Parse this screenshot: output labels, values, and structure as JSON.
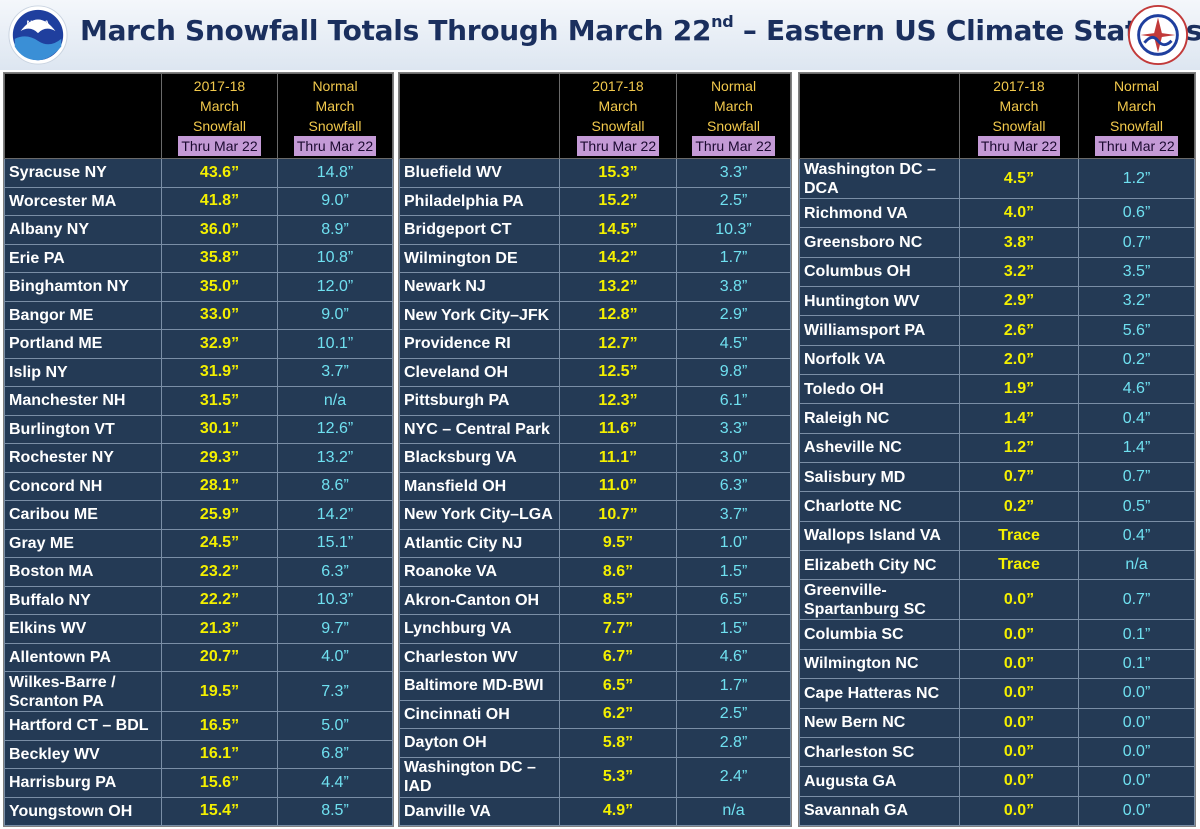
{
  "title": {
    "main": "March Snowfall Totals Through March 22",
    "sup": "nd",
    "tail": "  – Eastern US Climate Stations"
  },
  "logos": {
    "left": "NOAA",
    "right": "NATIONAL WEATHER SERVICE"
  },
  "headers": {
    "col_current": [
      "2017-18",
      "March",
      "Snowfall",
      "Thru Mar 22"
    ],
    "col_normal": [
      "Normal",
      "March",
      "Snowfall",
      "Thru Mar 22"
    ]
  },
  "colors": {
    "station_text": "#ffffff",
    "value_text": "#f4f000",
    "normal_text": "#6fe0f0",
    "cell_bg": "#243a55",
    "header_text": "#f2c94c"
  },
  "tables": [
    [
      [
        "Syracuse NY",
        "43.6”",
        "14.8”"
      ],
      [
        "Worcester MA",
        "41.8”",
        "9.0”"
      ],
      [
        "Albany NY",
        "36.0”",
        "8.9”"
      ],
      [
        "Erie PA",
        "35.8”",
        "10.8”"
      ],
      [
        "Binghamton NY",
        "35.0”",
        "12.0”"
      ],
      [
        "Bangor ME",
        "33.0”",
        "9.0”"
      ],
      [
        "Portland ME",
        "32.9”",
        "10.1”"
      ],
      [
        "Islip NY",
        "31.9”",
        "3.7”"
      ],
      [
        "Manchester NH",
        "31.5”",
        "n/a"
      ],
      [
        "Burlington VT",
        "30.1”",
        "12.6”"
      ],
      [
        "Rochester NY",
        "29.3”",
        "13.2”"
      ],
      [
        "Concord NH",
        "28.1”",
        "8.6”"
      ],
      [
        "Caribou ME",
        "25.9”",
        "14.2”"
      ],
      [
        "Gray ME",
        "24.5”",
        "15.1”"
      ],
      [
        "Boston MA",
        "23.2”",
        "6.3”"
      ],
      [
        "Buffalo NY",
        "22.2”",
        "10.3”"
      ],
      [
        "Elkins WV",
        "21.3”",
        "9.7”"
      ],
      [
        "Allentown PA",
        "20.7”",
        "4.0”"
      ],
      [
        "Wilkes-Barre / Scranton PA",
        "19.5”",
        "7.3”"
      ],
      [
        "Hartford CT – BDL",
        "16.5”",
        "5.0”"
      ],
      [
        "Beckley WV",
        "16.1”",
        "6.8”"
      ],
      [
        "Harrisburg PA",
        "15.6”",
        "4.4”"
      ],
      [
        "Youngstown OH",
        "15.4”",
        "8.5”"
      ]
    ],
    [
      [
        "Bluefield WV",
        "15.3”",
        "3.3”"
      ],
      [
        "Philadelphia PA",
        "15.2”",
        "2.5”"
      ],
      [
        "Bridgeport CT",
        "14.5”",
        "10.3”"
      ],
      [
        "Wilmington DE",
        "14.2”",
        "1.7”"
      ],
      [
        "Newark NJ",
        "13.2”",
        "3.8”"
      ],
      [
        "New York City–JFK",
        "12.8”",
        "2.9”"
      ],
      [
        "Providence RI",
        "12.7”",
        "4.5”"
      ],
      [
        "Cleveland OH",
        "12.5”",
        "9.8”"
      ],
      [
        "Pittsburgh PA",
        "12.3”",
        "6.1”"
      ],
      [
        "NYC – Central Park",
        "11.6”",
        "3.3”"
      ],
      [
        "Blacksburg VA",
        "11.1”",
        "3.0”"
      ],
      [
        "Mansfield OH",
        "11.0”",
        "6.3”"
      ],
      [
        "New York City–LGA",
        "10.7”",
        "3.7”"
      ],
      [
        "Atlantic City NJ",
        "9.5”",
        "1.0”"
      ],
      [
        "Roanoke VA",
        "8.6”",
        "1.5”"
      ],
      [
        "Akron-Canton OH",
        "8.5”",
        "6.5”"
      ],
      [
        "Lynchburg VA",
        "7.7”",
        "1.5”"
      ],
      [
        "Charleston WV",
        "6.7”",
        "4.6”"
      ],
      [
        "Baltimore MD-BWI",
        "6.5”",
        "1.7”"
      ],
      [
        "Cincinnati OH",
        "6.2”",
        "2.5”"
      ],
      [
        "Dayton OH",
        "5.8”",
        "2.8”"
      ],
      [
        "Washington DC – IAD",
        "5.3”",
        "2.4”"
      ],
      [
        "Danville VA",
        "4.9”",
        "n/a"
      ]
    ],
    [
      [
        "Washington DC – DCA",
        "4.5”",
        "1.2”"
      ],
      [
        "Richmond VA",
        "4.0”",
        "0.6”"
      ],
      [
        "Greensboro NC",
        "3.8”",
        "0.7”"
      ],
      [
        "Columbus OH",
        "3.2”",
        "3.5”"
      ],
      [
        "Huntington WV",
        "2.9”",
        "3.2”"
      ],
      [
        "Williamsport PA",
        "2.6”",
        "5.6”"
      ],
      [
        "Norfolk VA",
        "2.0”",
        "0.2”"
      ],
      [
        "Toledo OH",
        "1.9”",
        "4.6”"
      ],
      [
        "Raleigh NC",
        "1.4”",
        "0.4”"
      ],
      [
        "Asheville NC",
        "1.2”",
        "1.4”"
      ],
      [
        "Salisbury MD",
        "0.7”",
        "0.7”"
      ],
      [
        "Charlotte NC",
        "0.2”",
        "0.5”"
      ],
      [
        "Wallops Island VA",
        "Trace",
        "0.4”"
      ],
      [
        "Elizabeth City NC",
        "Trace",
        "n/a"
      ],
      [
        "Greenville-Spartanburg SC",
        "0.0”",
        "0.7”"
      ],
      [
        "Columbia SC",
        "0.0”",
        "0.1”"
      ],
      [
        "Wilmington NC",
        "0.0”",
        "0.1”"
      ],
      [
        "Cape Hatteras NC",
        "0.0”",
        "0.0”"
      ],
      [
        "New Bern NC",
        "0.0”",
        "0.0”"
      ],
      [
        "Charleston SC",
        "0.0”",
        "0.0”"
      ],
      [
        "Augusta GA",
        "0.0”",
        "0.0”"
      ],
      [
        "Savannah GA",
        "0.0”",
        "0.0”"
      ]
    ]
  ]
}
